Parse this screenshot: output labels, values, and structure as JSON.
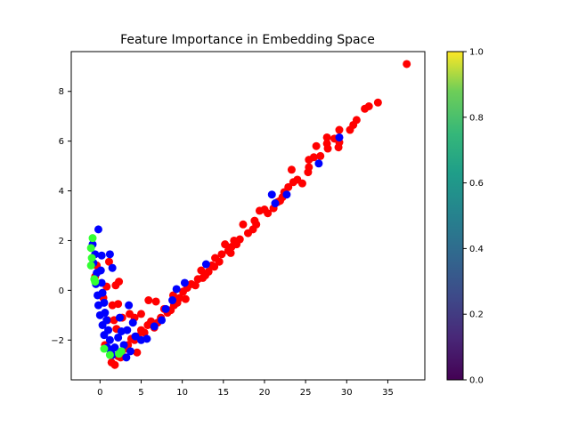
{
  "chart_data": {
    "type": "scatter",
    "title": "Feature Importance in Embedding Space",
    "xlabel": "",
    "ylabel": "",
    "xlim": [
      -3.5,
      39.5
    ],
    "ylim": [
      -3.6,
      9.6
    ],
    "xticks": [
      0,
      5,
      10,
      15,
      20,
      25,
      30,
      35
    ],
    "yticks": [
      -2,
      0,
      2,
      4,
      6,
      8
    ],
    "grid": false,
    "legend": "none",
    "colors": {
      "red": "#ff0000",
      "blue": "#0000ff",
      "green": "#33ff33"
    },
    "series": [
      {
        "color_key": "red",
        "points": [
          [
            37.3,
            9.1
          ],
          [
            33.8,
            7.55
          ],
          [
            32.7,
            7.4
          ],
          [
            32.2,
            7.3
          ],
          [
            31.2,
            6.85
          ],
          [
            30.8,
            6.65
          ],
          [
            30.4,
            6.45
          ],
          [
            29.1,
            6.45
          ],
          [
            29.1,
            5.95
          ],
          [
            29.0,
            5.75
          ],
          [
            27.6,
            6.15
          ],
          [
            27.6,
            5.9
          ],
          [
            27.7,
            5.7
          ],
          [
            26.8,
            5.4
          ],
          [
            26.3,
            5.8
          ],
          [
            26.0,
            5.35
          ],
          [
            25.4,
            5.25
          ],
          [
            25.4,
            4.95
          ],
          [
            25.3,
            4.75
          ],
          [
            24.0,
            4.45
          ],
          [
            23.5,
            4.35
          ],
          [
            23.3,
            4.85
          ],
          [
            22.9,
            4.15
          ],
          [
            22.4,
            3.95
          ],
          [
            22.2,
            3.75
          ],
          [
            21.9,
            3.6
          ],
          [
            21.6,
            3.55
          ],
          [
            21.1,
            3.3
          ],
          [
            20.4,
            3.1
          ],
          [
            20.0,
            3.25
          ],
          [
            19.4,
            3.2
          ],
          [
            19.0,
            2.65
          ],
          [
            18.6,
            2.45
          ],
          [
            18.0,
            2.3
          ],
          [
            17.4,
            2.65
          ],
          [
            17.0,
            2.05
          ],
          [
            16.6,
            1.85
          ],
          [
            16.3,
            2.0
          ],
          [
            16.0,
            1.75
          ],
          [
            15.6,
            1.6
          ],
          [
            15.2,
            1.85
          ],
          [
            14.8,
            1.45
          ],
          [
            14.5,
            1.15
          ],
          [
            14.0,
            1.3
          ],
          [
            13.6,
            1.0
          ],
          [
            13.2,
            0.75
          ],
          [
            12.8,
            0.6
          ],
          [
            12.3,
            0.8
          ],
          [
            11.9,
            0.45
          ],
          [
            11.6,
            0.2
          ],
          [
            11.1,
            0.25
          ],
          [
            10.6,
            0.1
          ],
          [
            10.1,
            -0.05
          ],
          [
            9.7,
            -0.3
          ],
          [
            9.4,
            -0.5
          ],
          [
            9.0,
            -0.6
          ],
          [
            8.6,
            -0.8
          ],
          [
            8.2,
            -0.9
          ],
          [
            7.8,
            -0.75
          ],
          [
            7.4,
            -1.1
          ],
          [
            7.0,
            -1.3
          ],
          [
            6.6,
            -1.5
          ],
          [
            6.2,
            -1.25
          ],
          [
            5.8,
            -1.4
          ],
          [
            5.4,
            -1.7
          ],
          [
            5.0,
            -1.6
          ],
          [
            4.6,
            -1.85
          ],
          [
            4.2,
            -2.0
          ],
          [
            3.8,
            -1.95
          ],
          [
            3.4,
            -2.2
          ],
          [
            3.0,
            -2.35
          ],
          [
            2.6,
            -2.5
          ],
          [
            2.2,
            -2.65
          ],
          [
            1.8,
            -3.0
          ],
          [
            1.4,
            -2.9
          ],
          [
            6.8,
            -0.45
          ],
          [
            5.9,
            -0.4
          ],
          [
            4.2,
            -1.1
          ],
          [
            3.6,
            -0.95
          ],
          [
            5.0,
            -0.95
          ],
          [
            2.3,
            0.35
          ],
          [
            1.9,
            0.2
          ],
          [
            2.2,
            -0.55
          ],
          [
            2.7,
            -1.1
          ],
          [
            1.7,
            -1.2
          ],
          [
            2.0,
            -1.55
          ],
          [
            0.9,
            -1.2
          ],
          [
            1.5,
            -0.6
          ],
          [
            0.8,
            0.15
          ],
          [
            0.4,
            -0.3
          ],
          [
            1.1,
            1.15
          ],
          [
            -0.4,
            1.0
          ],
          [
            -0.6,
            0.55
          ],
          [
            0.6,
            -2.2
          ],
          [
            2.5,
            -2.7
          ],
          [
            4.5,
            -2.5
          ],
          [
            12.5,
            0.5
          ],
          [
            18.8,
            2.8
          ],
          [
            24.6,
            4.3
          ],
          [
            28.5,
            6.1
          ],
          [
            15.9,
            1.5
          ],
          [
            10.4,
            -0.35
          ],
          [
            8.9,
            -0.2
          ],
          [
            13.9,
            0.95
          ]
        ]
      },
      {
        "color_key": "blue",
        "points": [
          [
            29.1,
            6.15
          ],
          [
            26.6,
            5.1
          ],
          [
            20.9,
            3.85
          ],
          [
            22.7,
            3.85
          ],
          [
            21.3,
            3.5
          ],
          [
            12.9,
            1.05
          ],
          [
            10.3,
            0.3
          ],
          [
            9.3,
            0.05
          ],
          [
            8.8,
            -0.4
          ],
          [
            8.0,
            -0.75
          ],
          [
            7.5,
            -1.2
          ],
          [
            6.6,
            -1.45
          ],
          [
            5.7,
            -1.95
          ],
          [
            5.0,
            -2.0
          ],
          [
            4.3,
            -1.85
          ],
          [
            3.7,
            -2.45
          ],
          [
            3.2,
            -2.7
          ],
          [
            2.9,
            -2.2
          ],
          [
            2.6,
            -1.65
          ],
          [
            2.2,
            -1.9
          ],
          [
            1.8,
            -2.3
          ],
          [
            1.5,
            -2.6
          ],
          [
            1.2,
            -2.0
          ],
          [
            1.0,
            -1.6
          ],
          [
            0.8,
            -1.2
          ],
          [
            0.6,
            -0.9
          ],
          [
            0.5,
            -0.5
          ],
          [
            0.3,
            -0.1
          ],
          [
            0.2,
            0.3
          ],
          [
            0.1,
            0.8
          ],
          [
            0.2,
            1.4
          ],
          [
            -0.2,
            2.45
          ],
          [
            -0.9,
            1.85
          ],
          [
            -0.6,
            1.45
          ],
          [
            -0.8,
            1.1
          ],
          [
            -0.4,
            0.7
          ],
          [
            -0.5,
            0.25
          ],
          [
            -0.3,
            -0.2
          ],
          [
            -0.2,
            -0.6
          ],
          [
            0.0,
            -1.0
          ],
          [
            0.3,
            -1.4
          ],
          [
            0.5,
            -1.8
          ],
          [
            0.9,
            -2.3
          ],
          [
            1.3,
            -2.5
          ],
          [
            3.3,
            -1.6
          ],
          [
            4.0,
            -1.3
          ],
          [
            2.4,
            -1.1
          ],
          [
            1.2,
            1.45
          ],
          [
            1.5,
            0.9
          ],
          [
            3.5,
            -0.6
          ]
        ]
      },
      {
        "color_key": "green",
        "points": [
          [
            -0.9,
            2.1
          ],
          [
            -1.1,
            1.7
          ],
          [
            -1.0,
            1.3
          ],
          [
            -1.1,
            1.0
          ],
          [
            -0.7,
            0.45
          ],
          [
            -0.6,
            0.35
          ],
          [
            0.5,
            -2.35
          ],
          [
            1.2,
            -2.6
          ],
          [
            2.3,
            -2.55
          ],
          [
            2.6,
            -2.45
          ]
        ]
      }
    ],
    "colorbar": {
      "min": 0.0,
      "max": 1.0,
      "ticks": [
        0.0,
        0.2,
        0.4,
        0.6,
        0.8,
        1.0
      ],
      "tick_labels": [
        "0.0",
        "0.2",
        "0.4",
        "0.6",
        "0.8",
        "1.0"
      ],
      "colormap": "viridis"
    }
  }
}
